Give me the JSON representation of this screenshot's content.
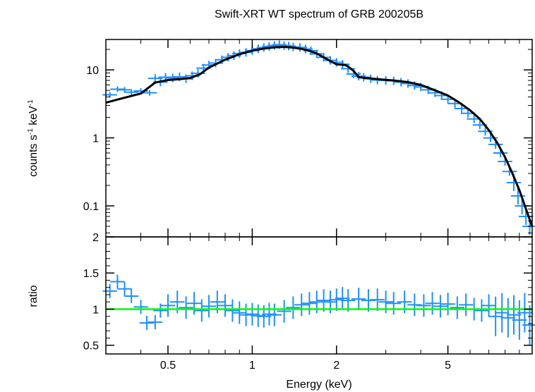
{
  "title": "Swift-XRT WT spectrum of GRB 200205B",
  "colors": {
    "data": "#1e90ff",
    "model": "#000000",
    "unity": "#00ff00",
    "axes": "#000000"
  },
  "chart_data": [
    {
      "type": "scatter",
      "panel": "spectrum",
      "ylabel_main": "counts s",
      "ylabel_sup1": "-1",
      "ylabel_mid": " keV",
      "ylabel_sup2": "-1",
      "xscale": "log",
      "yscale": "log",
      "xlim": [
        0.3,
        10
      ],
      "ylim": [
        0.035,
        28
      ],
      "y_ticks": [
        {
          "value": 10,
          "label": "10"
        },
        {
          "value": 1,
          "label": "1"
        },
        {
          "value": 0.1,
          "label": "0.1"
        }
      ],
      "series": [
        {
          "role": "data",
          "points": [
            [
              0.31,
              4.3
            ],
            [
              0.33,
              5.2
            ],
            [
              0.35,
              5.1
            ],
            [
              0.37,
              4.7
            ],
            [
              0.4,
              4.9
            ],
            [
              0.43,
              4.6
            ],
            [
              0.45,
              7.5
            ],
            [
              0.47,
              6.6
            ],
            [
              0.49,
              7.8
            ],
            [
              0.52,
              7.6
            ],
            [
              0.55,
              7.9
            ],
            [
              0.58,
              7.4
            ],
            [
              0.61,
              8.2
            ],
            [
              0.64,
              8.9
            ],
            [
              0.67,
              10.6
            ],
            [
              0.7,
              11.8
            ],
            [
              0.74,
              12.6
            ],
            [
              0.78,
              14.1
            ],
            [
              0.82,
              15.3
            ],
            [
              0.86,
              16.2
            ],
            [
              0.9,
              17.4
            ],
            [
              0.95,
              18.1
            ],
            [
              1.0,
              19.2
            ],
            [
              1.05,
              20.4
            ],
            [
              1.1,
              21.3
            ],
            [
              1.15,
              22.1
            ],
            [
              1.2,
              22.8
            ],
            [
              1.25,
              23.5
            ],
            [
              1.3,
              22.7
            ],
            [
              1.35,
              22.4
            ],
            [
              1.4,
              21.7
            ],
            [
              1.48,
              21.4
            ],
            [
              1.55,
              20.3
            ],
            [
              1.62,
              19.1
            ],
            [
              1.7,
              17.2
            ],
            [
              1.8,
              15.3
            ],
            [
              1.9,
              13.8
            ],
            [
              2.0,
              12.9
            ],
            [
              2.1,
              12.1
            ],
            [
              2.2,
              10.4
            ],
            [
              2.3,
              8.7
            ],
            [
              2.4,
              8.1
            ],
            [
              2.5,
              7.8
            ],
            [
              2.65,
              7.4
            ],
            [
              2.8,
              7.1
            ],
            [
              3.0,
              7.0
            ],
            [
              3.2,
              6.9
            ],
            [
              3.4,
              6.6
            ],
            [
              3.6,
              6.3
            ],
            [
              3.8,
              5.9
            ],
            [
              4.0,
              5.6
            ],
            [
              4.25,
              5.1
            ],
            [
              4.5,
              4.6
            ],
            [
              4.75,
              4.2
            ],
            [
              5.0,
              3.7
            ],
            [
              5.3,
              3.2
            ],
            [
              5.6,
              2.7
            ],
            [
              5.9,
              2.3
            ],
            [
              6.2,
              1.9
            ],
            [
              6.5,
              1.55
            ],
            [
              6.8,
              1.25
            ],
            [
              7.1,
              1.0
            ],
            [
              7.4,
              0.8
            ],
            [
              7.7,
              0.6
            ],
            [
              8.0,
              0.45
            ],
            [
              8.3,
              0.32
            ],
            [
              8.6,
              0.22
            ],
            [
              8.9,
              0.14
            ],
            [
              9.2,
              0.1
            ],
            [
              9.5,
              0.07
            ],
            [
              9.8,
              0.05
            ]
          ]
        },
        {
          "role": "model",
          "points": [
            [
              0.3,
              3.3
            ],
            [
              0.35,
              3.9
            ],
            [
              0.4,
              4.5
            ],
            [
              0.45,
              6.5
            ],
            [
              0.5,
              7.1
            ],
            [
              0.55,
              7.3
            ],
            [
              0.6,
              7.6
            ],
            [
              0.65,
              8.6
            ],
            [
              0.7,
              10.8
            ],
            [
              0.8,
              14.1
            ],
            [
              0.9,
              17.0
            ],
            [
              1.0,
              19.2
            ],
            [
              1.1,
              20.6
            ],
            [
              1.2,
              21.5
            ],
            [
              1.3,
              21.8
            ],
            [
              1.4,
              21.3
            ],
            [
              1.5,
              20.4
            ],
            [
              1.6,
              19.1
            ],
            [
              1.7,
              17.4
            ],
            [
              1.8,
              15.3
            ],
            [
              1.9,
              13.5
            ],
            [
              2.0,
              12.1
            ],
            [
              2.15,
              11.8
            ],
            [
              2.2,
              11.2
            ],
            [
              2.3,
              9.7
            ],
            [
              2.4,
              7.8
            ],
            [
              2.55,
              7.6
            ],
            [
              2.8,
              7.3
            ],
            [
              3.2,
              7.0
            ],
            [
              3.6,
              6.6
            ],
            [
              4.0,
              6.0
            ],
            [
              4.5,
              5.0
            ],
            [
              5.0,
              4.2
            ],
            [
              5.5,
              3.3
            ],
            [
              6.0,
              2.55
            ],
            [
              6.5,
              1.9
            ],
            [
              7.0,
              1.3
            ],
            [
              7.5,
              0.85
            ],
            [
              8.0,
              0.52
            ],
            [
              8.5,
              0.3
            ],
            [
              9.0,
              0.17
            ],
            [
              9.5,
              0.09
            ],
            [
              10.0,
              0.05
            ]
          ]
        }
      ]
    },
    {
      "type": "scatter",
      "panel": "ratio",
      "xlabel": "Energy (keV)",
      "ylabel": "ratio",
      "xscale": "log",
      "xlim": [
        0.3,
        10
      ],
      "ylim": [
        0.38,
        2.0
      ],
      "x_ticks": [
        {
          "value": 0.5,
          "label": "0.5"
        },
        {
          "value": 1,
          "label": "1"
        },
        {
          "value": 2,
          "label": "2"
        },
        {
          "value": 5,
          "label": "5"
        }
      ],
      "y_ticks": [
        {
          "value": 2,
          "label": "2"
        },
        {
          "value": 1.5,
          "label": "1.5"
        },
        {
          "value": 1,
          "label": "1"
        },
        {
          "value": 0.5,
          "label": "0.5"
        }
      ],
      "reference_line": 1.0,
      "series": [
        {
          "role": "data",
          "points": [
            [
              0.31,
              1.25
            ],
            [
              0.33,
              1.38
            ],
            [
              0.35,
              1.28
            ],
            [
              0.37,
              1.18
            ],
            [
              0.4,
              1.03
            ],
            [
              0.42,
              0.81
            ],
            [
              0.45,
              0.82
            ],
            [
              0.47,
              0.98
            ],
            [
              0.5,
              1.05
            ],
            [
              0.54,
              1.1
            ],
            [
              0.58,
              1.02
            ],
            [
              0.62,
              1.08
            ],
            [
              0.66,
              0.98
            ],
            [
              0.7,
              1.04
            ],
            [
              0.75,
              1.1
            ],
            [
              0.8,
              1.05
            ],
            [
              0.85,
              0.98
            ],
            [
              0.9,
              0.95
            ],
            [
              0.95,
              0.92
            ],
            [
              1.0,
              0.93
            ],
            [
              1.05,
              0.91
            ],
            [
              1.1,
              0.9
            ],
            [
              1.15,
              0.93
            ],
            [
              1.2,
              0.92
            ],
            [
              1.3,
              0.97
            ],
            [
              1.4,
              1.02
            ],
            [
              1.5,
              1.06
            ],
            [
              1.6,
              1.08
            ],
            [
              1.7,
              1.1
            ],
            [
              1.8,
              1.12
            ],
            [
              1.9,
              1.1
            ],
            [
              2.0,
              1.13
            ],
            [
              2.1,
              1.15
            ],
            [
              2.2,
              1.12
            ],
            [
              2.4,
              1.14
            ],
            [
              2.6,
              1.12
            ],
            [
              2.8,
              1.13
            ],
            [
              3.0,
              1.1
            ],
            [
              3.2,
              1.08
            ],
            [
              3.5,
              1.1
            ],
            [
              3.8,
              1.06
            ],
            [
              4.1,
              1.05
            ],
            [
              4.4,
              1.08
            ],
            [
              4.7,
              1.04
            ],
            [
              5.0,
              1.07
            ],
            [
              5.4,
              1.02
            ],
            [
              5.8,
              1.06
            ],
            [
              6.2,
              1.0
            ],
            [
              6.6,
              0.98
            ],
            [
              7.0,
              1.05
            ],
            [
              7.4,
              0.9
            ],
            [
              7.8,
              0.95
            ],
            [
              8.2,
              0.88
            ],
            [
              8.6,
              0.92
            ],
            [
              9.0,
              0.85
            ],
            [
              9.4,
              0.95
            ],
            [
              9.8,
              0.78
            ]
          ]
        }
      ]
    }
  ]
}
